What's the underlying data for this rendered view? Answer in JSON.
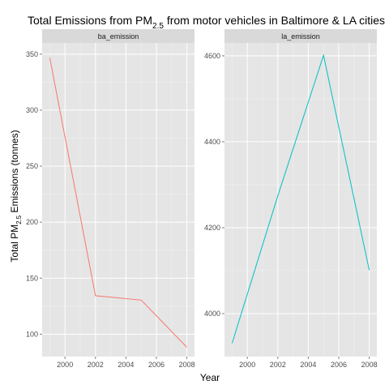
{
  "chart_data": {
    "type": "line",
    "title": {
      "before": "Total Emissions from PM",
      "sub": "2.5",
      "after": " from motor vehicles in Baltimore & LA cities"
    },
    "xlabel": "Year",
    "ylabel": {
      "before": "Total PM",
      "sub": "2.5",
      "after": " Emissions (tonnes)"
    },
    "x_ticks": [
      "2000",
      "2002",
      "2004",
      "2006",
      "2008"
    ],
    "xlim": [
      1998.5,
      2008.5
    ],
    "grid": true,
    "panels": [
      {
        "name": "ba_emission",
        "color": "#F8766D",
        "x": [
          1999,
          2002,
          2005,
          2008
        ],
        "y": [
          346.8,
          134.3,
          130.4,
          88.3
        ],
        "ylim": [
          80,
          360
        ],
        "y_ticks": [
          100,
          150,
          200,
          250,
          300,
          350
        ]
      },
      {
        "name": "la_emission",
        "color": "#00BFC4",
        "x": [
          1999,
          2002,
          2005,
          2008
        ],
        "y": [
          3931.1,
          4274.0,
          4601.4,
          4101.3
        ],
        "ylim": [
          3900,
          4630
        ],
        "y_ticks": [
          4000,
          4200,
          4400,
          4600
        ]
      }
    ]
  }
}
